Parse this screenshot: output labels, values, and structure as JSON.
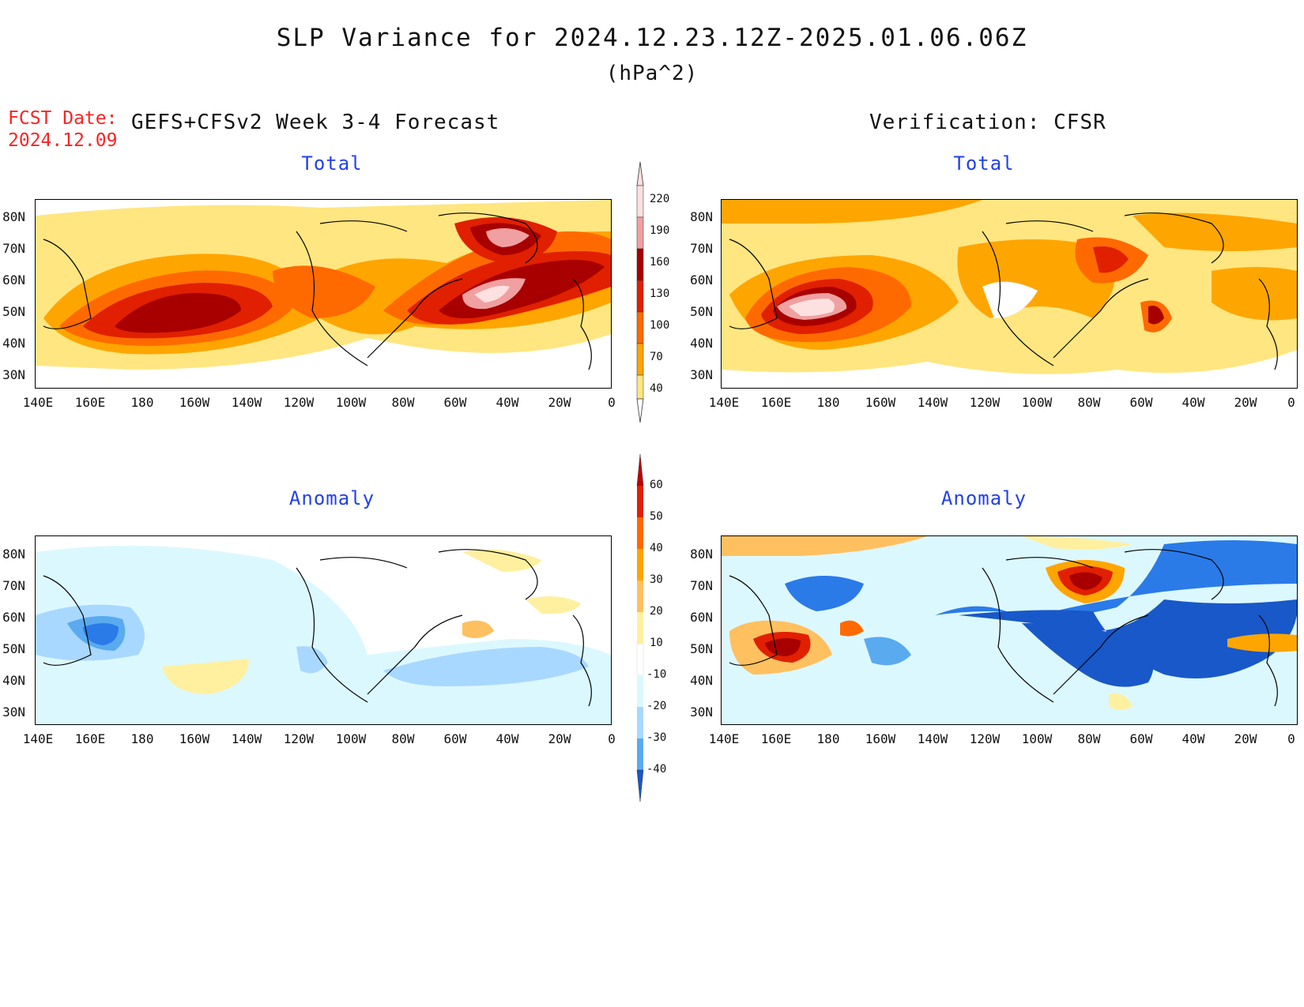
{
  "header": {
    "title": "SLP Variance for 2024.12.23.12Z-2025.01.06.06Z",
    "units": "(hPa^2)",
    "fcst_label": "FCST Date:",
    "fcst_date": "2024.12.09",
    "left_column": "GEFS+CFSv2 Week 3-4 Forecast",
    "right_column": "Verification: CFSR"
  },
  "panels": {
    "top_left_title": "Total",
    "top_right_title": "Total",
    "bottom_left_title": "Anomaly",
    "bottom_right_title": "Anomaly"
  },
  "axes": {
    "lat_labels": [
      "80N",
      "70N",
      "60N",
      "50N",
      "40N",
      "30N"
    ],
    "lon_labels": [
      "140E",
      "160E",
      "180",
      "160W",
      "140W",
      "120W",
      "100W",
      "80W",
      "60W",
      "40W",
      "20W",
      "0"
    ]
  },
  "colorbars": {
    "total": {
      "levels": [
        "40",
        "70",
        "100",
        "130",
        "160",
        "190",
        "220"
      ],
      "colors": [
        "#ffe680",
        "#ffa500",
        "#ff6a00",
        "#e02000",
        "#a80000",
        "#f0a0a0",
        "#fde0e0"
      ]
    },
    "anomaly": {
      "levels": [
        "60",
        "50",
        "40",
        "30",
        "20",
        "10",
        "-10",
        "-20",
        "-30",
        "-40"
      ],
      "colors_top": [
        "#c00000",
        "#e02000",
        "#ff6a00",
        "#ffa500",
        "#ffc060",
        "#fff0a0"
      ],
      "colors_bottom": [
        "#dcf8ff",
        "#a8d8ff",
        "#5aaaf0",
        "#2a7ae8",
        "#1858c8"
      ]
    }
  }
}
